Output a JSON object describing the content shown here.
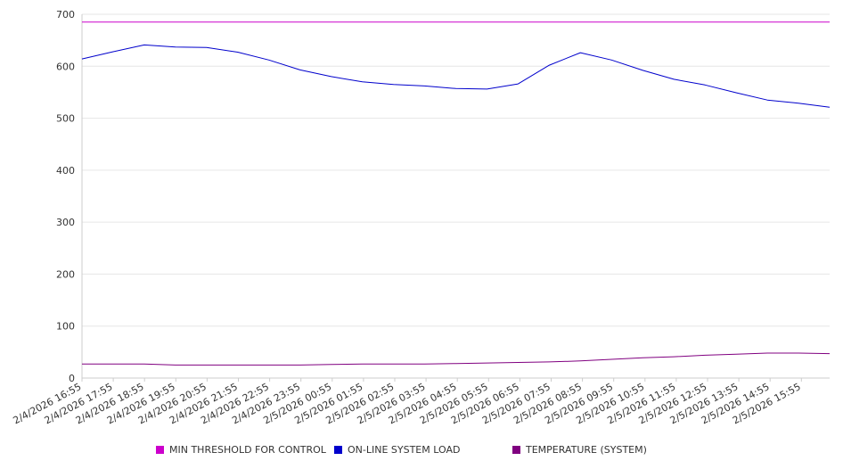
{
  "chart_data": {
    "type": "line",
    "ylim": [
      0,
      700
    ],
    "y_ticks": [
      0,
      100,
      200,
      300,
      400,
      500,
      600,
      700
    ],
    "x_tick_labels": [
      "2/4/2026 16:55",
      "2/4/2026 17:55",
      "2/4/2026 18:55",
      "2/4/2026 19:55",
      "2/4/2026 20:55",
      "2/4/2026 21:55",
      "2/4/2026 22:55",
      "2/4/2026 23:55",
      "2/5/2026 00:55",
      "2/5/2026 01:55",
      "2/5/2026 02:55",
      "2/5/2026 03:55",
      "2/5/2026 04:55",
      "2/5/2026 05:55",
      "2/5/2026 06:55",
      "2/5/2026 07:55",
      "2/5/2026 08:55",
      "2/5/2026 09:55",
      "2/5/2026 10:55",
      "2/5/2026 11:55",
      "2/5/2026 12:55",
      "2/5/2026 13:55",
      "2/5/2026 14:55",
      "2/5/2026 15:55"
    ],
    "grid": true,
    "legend_position": "bottom",
    "series": [
      {
        "name": "MIN THRESHOLD FOR CONTROL",
        "color": "#cc00cc",
        "values": [
          685,
          685,
          685,
          685,
          685,
          685,
          685,
          685,
          685,
          685,
          685,
          685,
          685,
          685,
          685,
          685,
          685,
          685,
          685,
          685,
          685,
          685,
          685,
          685,
          685
        ]
      },
      {
        "name": "ON-LINE SYSTEM LOAD",
        "color": "#0000cc",
        "values": [
          614,
          628,
          641,
          637,
          636,
          627,
          612,
          593,
          580,
          570,
          565,
          562,
          557,
          556,
          566,
          602,
          626,
          612,
          592,
          575,
          564,
          549,
          535,
          529,
          521
        ]
      },
      {
        "name": "TEMPERATURE (SYSTEM)",
        "color": "#800080",
        "values": [
          27,
          27,
          27,
          25,
          25,
          25,
          25,
          25,
          26,
          27,
          27,
          27,
          28,
          29,
          30,
          31,
          33,
          36,
          39,
          41,
          44,
          46,
          48,
          48,
          47
        ]
      }
    ]
  }
}
